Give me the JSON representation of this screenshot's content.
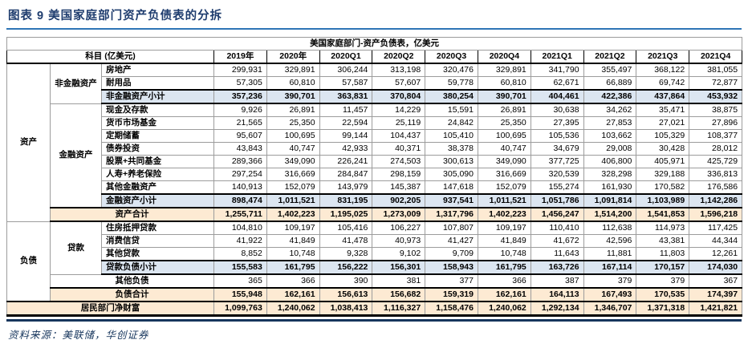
{
  "figure": {
    "caption": "图表 9  美国家庭部门资产负债表的分拆",
    "source": "资料来源：美联储，华创证券"
  },
  "colors": {
    "accent_rule_blue": "#2e75b6",
    "navy_text": "#1e3c6e",
    "subtotal_row_bg": "#dce6f1",
    "total_row_bg": "#fdead3"
  },
  "table": {
    "title": "美国家庭部门-资产负债表，亿美元",
    "corner_label": "科目 (亿美元)",
    "columns": [
      "2019年",
      "2020年",
      "2020Q1",
      "2020Q2",
      "2020Q3",
      "2020Q4",
      "2021Q1",
      "2021Q2",
      "2021Q3",
      "2021Q4"
    ],
    "rows": [
      {
        "group": "资产",
        "group_rowspan": 12,
        "subgroup": "非金融资产",
        "subgroup_rowspan": 3,
        "label": "房地产",
        "style": "plain",
        "values": [
          "299,931",
          "329,891",
          "306,244",
          "313,198",
          "320,476",
          "329,891",
          "341,790",
          "355,497",
          "368,122",
          "381,055"
        ]
      },
      {
        "label": "耐用品",
        "style": "plain",
        "values": [
          "57,305",
          "60,810",
          "57,587",
          "57,607",
          "59,778",
          "60,810",
          "62,671",
          "66,889",
          "69,742",
          "72,877"
        ]
      },
      {
        "label": "非金融资产小计",
        "style": "sub",
        "values": [
          "357,236",
          "390,701",
          "363,831",
          "370,804",
          "380,254",
          "390,701",
          "404,461",
          "422,386",
          "437,864",
          "453,932"
        ]
      },
      {
        "subgroup": "金融资产",
        "subgroup_rowspan": 8,
        "label": "现金及存款",
        "style": "plain",
        "values": [
          "9,926",
          "26,891",
          "11,457",
          "14,229",
          "15,591",
          "26,891",
          "30,638",
          "34,262",
          "35,471",
          "38,875"
        ]
      },
      {
        "label": "货币市场基金",
        "style": "plain",
        "values": [
          "21,565",
          "25,350",
          "22,594",
          "25,119",
          "24,842",
          "25,350",
          "27,395",
          "27,853",
          "27,021",
          "27,896"
        ]
      },
      {
        "label": "定期储蓄",
        "style": "plain",
        "values": [
          "95,607",
          "100,695",
          "99,144",
          "104,437",
          "105,410",
          "100,695",
          "105,536",
          "103,662",
          "105,329",
          "108,377"
        ]
      },
      {
        "label": "债券投资",
        "style": "plain",
        "values": [
          "43,843",
          "40,747",
          "42,933",
          "40,371",
          "38,378",
          "40,747",
          "34,679",
          "29,008",
          "30,428",
          "28,012"
        ]
      },
      {
        "label": "股票+共同基金",
        "style": "plain",
        "values": [
          "289,366",
          "349,090",
          "226,241",
          "274,503",
          "300,613",
          "349,090",
          "377,725",
          "406,800",
          "405,971",
          "425,729"
        ]
      },
      {
        "label": "人寿+养老保险",
        "style": "plain",
        "values": [
          "297,254",
          "316,669",
          "284,847",
          "298,159",
          "305,090",
          "316,669",
          "320,539",
          "328,298",
          "329,188",
          "336,813"
        ]
      },
      {
        "label": "其他金融资产",
        "style": "plain",
        "values": [
          "140,913",
          "152,079",
          "143,979",
          "145,387",
          "147,618",
          "152,079",
          "155,274",
          "161,930",
          "170,582",
          "176,586"
        ]
      },
      {
        "label": "金融资产小计",
        "style": "sub",
        "values": [
          "898,474",
          "1,011,521",
          "831,195",
          "902,205",
          "937,541",
          "1,011,521",
          "1,051,786",
          "1,091,814",
          "1,103,989",
          "1,142,286"
        ]
      },
      {
        "label": "资产合计",
        "style": "tot",
        "label_colspan": 2,
        "values": [
          "1,255,711",
          "1,402,223",
          "1,195,025",
          "1,273,009",
          "1,317,796",
          "1,402,223",
          "1,456,247",
          "1,514,200",
          "1,541,853",
          "1,596,218"
        ]
      },
      {
        "group": "负债",
        "group_rowspan": 6,
        "subgroup": "贷款",
        "subgroup_rowspan": 4,
        "label": "住房抵押贷款",
        "style": "plain",
        "values": [
          "104,810",
          "109,197",
          "105,416",
          "106,227",
          "107,807",
          "109,197",
          "110,410",
          "112,638",
          "114,973",
          "117,425"
        ]
      },
      {
        "label": "消费信贷",
        "style": "plain",
        "values": [
          "41,922",
          "41,849",
          "41,478",
          "40,973",
          "41,427",
          "41,849",
          "41,672",
          "42,596",
          "43,381",
          "44,344"
        ]
      },
      {
        "label": "其他贷款",
        "style": "plain",
        "values": [
          "8,852",
          "10,748",
          "9,328",
          "9,102",
          "9,709",
          "10,748",
          "11,643",
          "11,881",
          "11,803",
          "12,261"
        ]
      },
      {
        "label": "贷款负债小计",
        "style": "sub",
        "values": [
          "155,583",
          "161,795",
          "156,222",
          "156,301",
          "158,943",
          "161,795",
          "163,726",
          "167,114",
          "170,157",
          "174,030"
        ]
      },
      {
        "label": "其他负债",
        "style": "plain",
        "label_colspan": 2,
        "values": [
          "365",
          "366",
          "390",
          "381",
          "377",
          "366",
          "387",
          "379",
          "379",
          "367"
        ]
      },
      {
        "label": "负债合计",
        "style": "tot",
        "label_colspan": 2,
        "values": [
          "155,948",
          "162,161",
          "156,613",
          "156,682",
          "159,319",
          "162,161",
          "164,113",
          "167,493",
          "170,535",
          "174,397"
        ]
      },
      {
        "label": "居民部门净财富",
        "style": "net",
        "label_colspan": 3,
        "values": [
          "1,099,763",
          "1,240,062",
          "1,038,413",
          "1,116,327",
          "1,158,476",
          "1,240,062",
          "1,292,134",
          "1,346,707",
          "1,371,318",
          "1,421,821"
        ]
      }
    ]
  }
}
